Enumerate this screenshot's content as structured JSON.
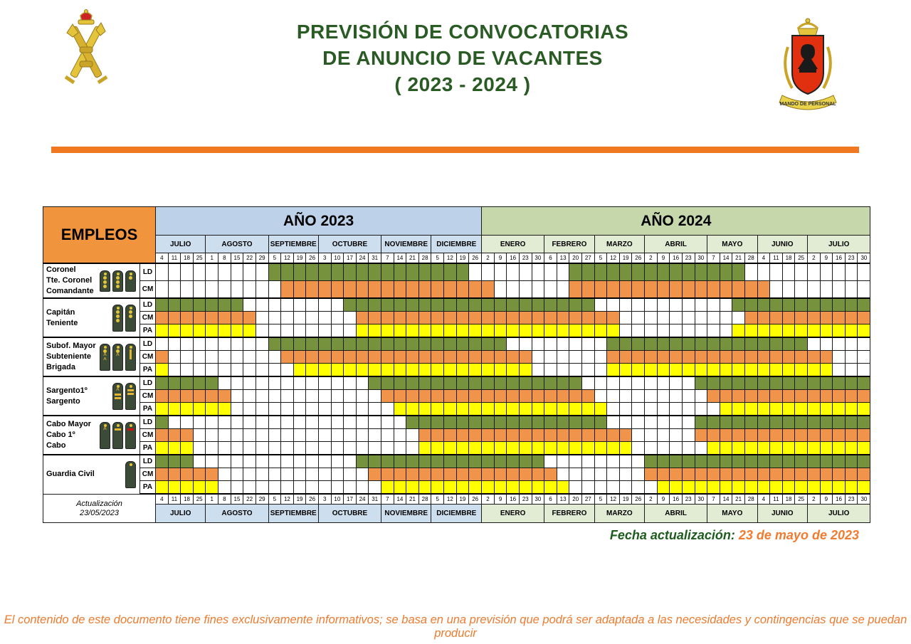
{
  "header": {
    "title_lines": [
      "PREVISIÓN DE CONVOCATORIAS",
      "DE ANUNCIO DE VACANTES",
      "( 2023 - 2024 )"
    ],
    "left_logo_name": "guardia-civil-crest",
    "right_logo_name": "mando-de-personal-crest",
    "right_logo_ribbon_text": "MANDO DE PERSONAL"
  },
  "colors": {
    "title_green": "#2a5b24",
    "accent_orange_bar": "#f07820",
    "empleos_bg": "#f0943e",
    "year2023_bg": "#bdd2e8",
    "month2023_bg": "#cddeee",
    "year2024_bg": "#c6d7ab",
    "month2024_bg": "#e2ecd4",
    "ld_green": "#76923c",
    "cm_orange": "#f0944c",
    "pa_yellow": "#ffff00",
    "footer_orange": "#ee7b30"
  },
  "table": {
    "empleos_label": "EMPLEOS",
    "years": [
      {
        "label": "AÑO 2023",
        "cls": "2023",
        "months": [
          {
            "name": "JULIO",
            "weeks": [
              "4",
              "11",
              "18",
              "25"
            ]
          },
          {
            "name": "AGOSTO",
            "weeks": [
              "1",
              "8",
              "15",
              "22",
              "29"
            ]
          },
          {
            "name": "SEPTIEMBRE",
            "weeks": [
              "5",
              "12",
              "19",
              "26"
            ]
          },
          {
            "name": "OCTUBRE",
            "weeks": [
              "3",
              "10",
              "17",
              "24",
              "31"
            ]
          },
          {
            "name": "NOVIEMBRE",
            "weeks": [
              "7",
              "14",
              "21",
              "28"
            ]
          },
          {
            "name": "DICIEMBRE",
            "weeks": [
              "5",
              "12",
              "19",
              "26"
            ]
          }
        ]
      },
      {
        "label": "AÑO 2024",
        "cls": "2024",
        "months": [
          {
            "name": "ENERO",
            "weeks": [
              "2",
              "9",
              "16",
              "23",
              "30"
            ]
          },
          {
            "name": "FEBRERO",
            "weeks": [
              "6",
              "13",
              "20",
              "27"
            ]
          },
          {
            "name": "MARZO",
            "weeks": [
              "5",
              "12",
              "19",
              "26"
            ]
          },
          {
            "name": "ABRIL",
            "weeks": [
              "2",
              "9",
              "16",
              "23",
              "30"
            ]
          },
          {
            "name": "MAYO",
            "weeks": [
              "7",
              "14",
              "21",
              "28"
            ]
          },
          {
            "name": "JUNIO",
            "weeks": [
              "4",
              "11",
              "18",
              "25"
            ]
          },
          {
            "name": "JULIO",
            "weeks": [
              "2",
              "9",
              "16",
              "23",
              "30"
            ]
          }
        ]
      }
    ],
    "groups": [
      {
        "ranks": [
          "Coronel",
          "Tte. Coronel",
          "Comandante"
        ],
        "insignia": [
          {
            "stars": 3
          },
          {
            "stars": 3
          },
          {
            "stars": 1
          }
        ],
        "rows": [
          {
            "type": "LD",
            "runs": [
              [
                10,
                25
              ],
              [
                34,
                47
              ]
            ]
          },
          {
            "type": "CM",
            "runs": [
              [
                11,
                27
              ],
              [
                34,
                49
              ]
            ]
          }
        ]
      },
      {
        "ranks": [
          "Capitán",
          "Teniente"
        ],
        "insignia": [
          {
            "stars": 3
          },
          {
            "stars": 2
          }
        ],
        "rows": [
          {
            "type": "LD",
            "runs": [
              [
                1,
                7
              ],
              [
                16,
                35
              ],
              [
                47,
                57
              ]
            ]
          },
          {
            "type": "CM",
            "runs": [
              [
                1,
                8
              ],
              [
                17,
                37
              ],
              [
                48,
                57
              ]
            ]
          },
          {
            "type": "PA",
            "runs": [
              [
                1,
                8
              ],
              [
                17,
                37
              ],
              [
                47,
                57
              ]
            ]
          }
        ]
      },
      {
        "ranks": [
          "Subof. Mayor",
          "Subteniente",
          "Brigada"
        ],
        "insignia": [
          {
            "stars": 1,
            "chevrons": 2
          },
          {
            "stars": 1,
            "chevrons": 1
          },
          {
            "vbar": true
          }
        ],
        "rows": [
          {
            "type": "LD",
            "runs": [
              [
                10,
                28
              ],
              [
                37,
                52
              ]
            ]
          },
          {
            "type": "CM",
            "runs": [
              [
                1,
                1
              ],
              [
                11,
                30
              ],
              [
                37,
                54
              ]
            ]
          },
          {
            "type": "PA",
            "runs": [
              [
                1,
                1
              ],
              [
                12,
                30
              ],
              [
                37,
                54
              ]
            ]
          }
        ]
      },
      {
        "ranks": [
          "Sargento1º",
          "Sargento"
        ],
        "insignia": [
          {
            "chevrons": 1,
            "gold_bars": 2
          },
          {
            "gold_bars": 2
          }
        ],
        "rows": [
          {
            "type": "LD",
            "runs": [
              [
                1,
                5
              ],
              [
                18,
                34
              ],
              [
                44,
                57
              ]
            ]
          },
          {
            "type": "CM",
            "runs": [
              [
                1,
                6
              ],
              [
                19,
                35
              ],
              [
                45,
                57
              ]
            ]
          },
          {
            "type": "PA",
            "runs": [
              [
                1,
                6
              ],
              [
                20,
                36
              ],
              [
                46,
                57
              ]
            ]
          }
        ]
      },
      {
        "ranks": [
          "Cabo Mayor",
          "Cabo 1º",
          "Cabo"
        ],
        "insignia": [
          {
            "chevrons": 1
          },
          {
            "gold_bars": 1
          },
          {
            "red_bars": 1
          }
        ],
        "rows": [
          {
            "type": "LD",
            "runs": [
              [
                1,
                1
              ],
              [
                21,
                36
              ],
              [
                44,
                57
              ]
            ]
          },
          {
            "type": "CM",
            "runs": [
              [
                1,
                3
              ],
              [
                22,
                38
              ],
              [
                44,
                57
              ]
            ]
          },
          {
            "type": "PA",
            "runs": [
              [
                1,
                3
              ],
              [
                22,
                38
              ],
              [
                45,
                57
              ]
            ]
          }
        ]
      },
      {
        "ranks": [
          "Guardia Civil"
        ],
        "insignia": [
          {}
        ],
        "rows": [
          {
            "type": "LD",
            "runs": [
              [
                1,
                3
              ],
              [
                17,
                31
              ],
              [
                40,
                57
              ]
            ]
          },
          {
            "type": "CM",
            "runs": [
              [
                1,
                5
              ],
              [
                18,
                32
              ],
              [
                40,
                57
              ]
            ]
          },
          {
            "type": "PA",
            "runs": [
              [
                1,
                5
              ],
              [
                19,
                33
              ],
              [
                41,
                57
              ]
            ]
          }
        ]
      }
    ],
    "update_cell_lines": [
      "Actualización",
      "23/05/2023"
    ]
  },
  "fecha": {
    "label": "Fecha actualización:",
    "value": " 23 de mayo de 2023"
  },
  "footer_note": "El contenido de este documento tiene fines exclusivamente informativos; se basa en una previsión que podrá ser adaptada a las necesidades y contingencias que se puedan producir"
}
